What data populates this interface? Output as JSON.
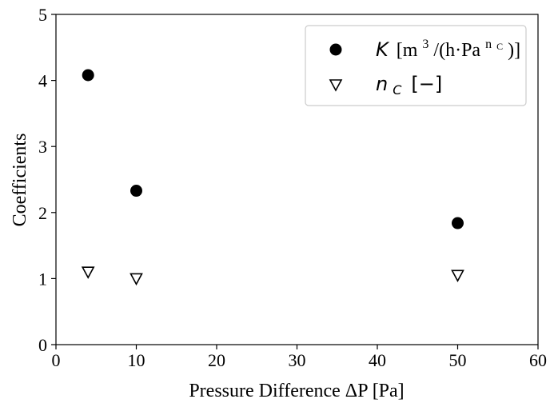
{
  "chart_data": {
    "type": "scatter",
    "xlabel": "Pressure Difference ΔP [Pa]",
    "ylabel": "Coefficients",
    "xlim": [
      0,
      60
    ],
    "ylim": [
      0,
      5
    ],
    "xticks": [
      0,
      10,
      20,
      30,
      40,
      50,
      60
    ],
    "yticks": [
      0,
      1,
      2,
      3,
      4,
      5
    ],
    "grid": false,
    "legend_position": "top-right",
    "series": [
      {
        "name": "K [m3/(h·Pa^nC)]",
        "marker": "filled-circle",
        "color": "#000000",
        "x": [
          4,
          10,
          50
        ],
        "y": [
          4.08,
          2.33,
          1.84
        ]
      },
      {
        "name": "nC [−]",
        "marker": "open-triangle-down",
        "color": "#000000",
        "x": [
          4,
          10,
          50
        ],
        "y": [
          1.1,
          1.0,
          1.05
        ]
      }
    ]
  },
  "legend": {
    "k_symbol": "K",
    "k_units_open": "[m",
    "k_units_exp": "3",
    "k_units_mid": "/(h·Pa",
    "k_units_sup": "n",
    "k_units_sup_sub": "C",
    "k_units_close": ")]",
    "n_symbol": "n",
    "n_subscript": "C",
    "n_units": "[−]"
  }
}
